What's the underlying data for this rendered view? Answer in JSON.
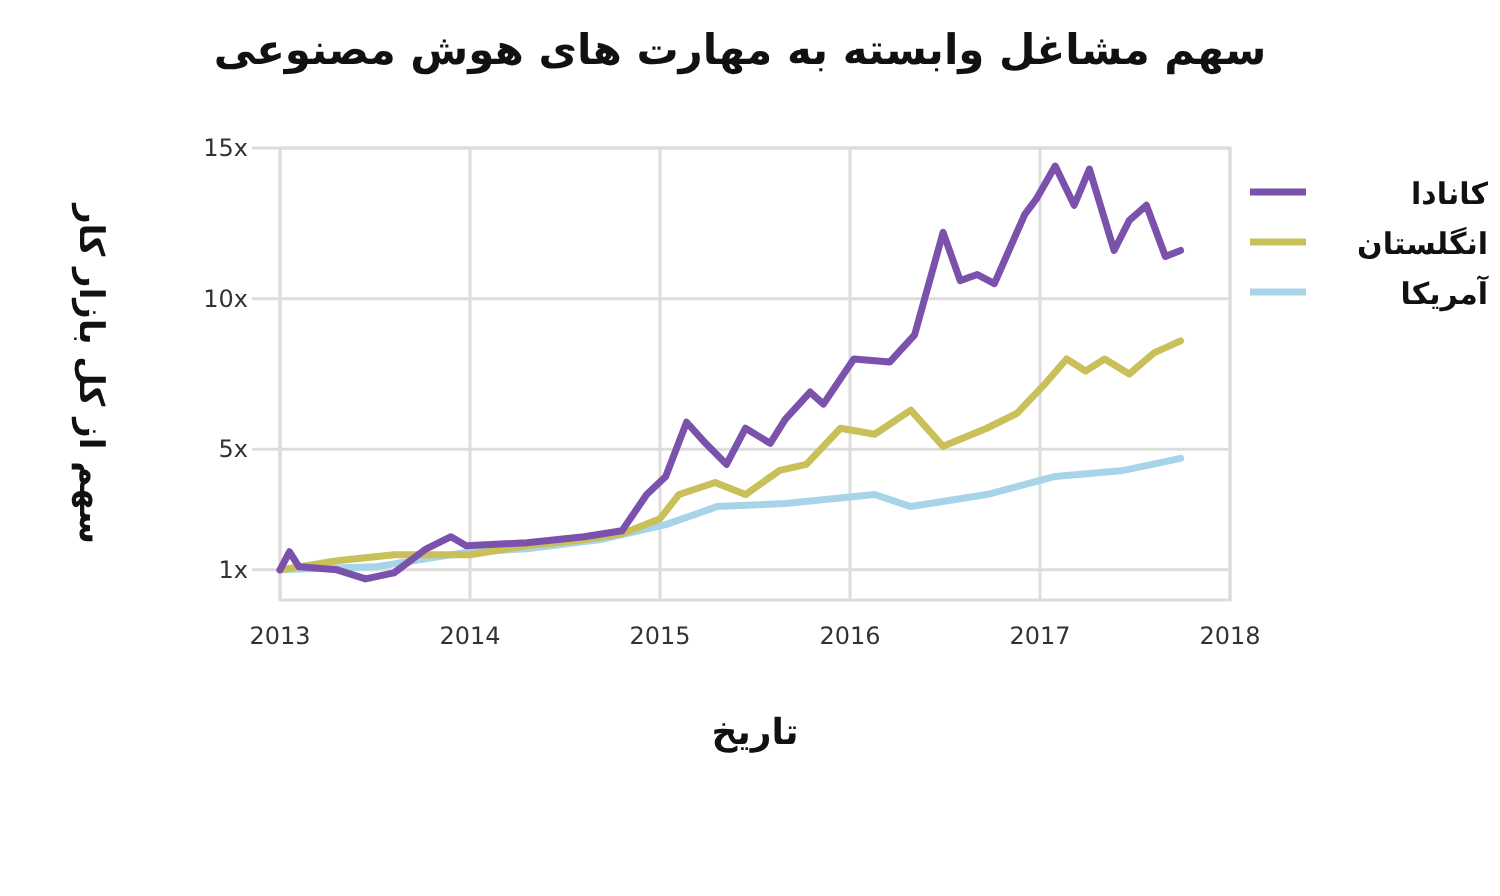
{
  "chart_data": {
    "type": "line",
    "title": "سهم مشاغل وابسته به مهارت های هوش مصنوعی",
    "xlabel": "تاریخ",
    "ylabel": "سهم از کل بازار کار",
    "xlim": [
      2013,
      2018
    ],
    "ylim": [
      0,
      15
    ],
    "xticks": [
      2013,
      2014,
      2015,
      2016,
      2017,
      2018
    ],
    "yticks": [
      {
        "value": 1,
        "label": "1x"
      },
      {
        "value": 5,
        "label": "5x"
      },
      {
        "value": 10,
        "label": "10x"
      },
      {
        "value": 15,
        "label": "15x"
      }
    ],
    "grid": true,
    "legend": "right",
    "series": [
      {
        "name": "کانادا",
        "color": "#7b52ab",
        "x": [
          2013.0,
          2013.05,
          2013.1,
          2013.3,
          2013.45,
          2013.6,
          2013.77,
          2013.9,
          2013.98,
          2014.3,
          2014.6,
          2014.8,
          2014.93,
          2015.03,
          2015.14,
          2015.24,
          2015.35,
          2015.45,
          2015.58,
          2015.66,
          2015.79,
          2015.86,
          2016.02,
          2016.21,
          2016.34,
          2016.49,
          2016.58,
          2016.67,
          2016.76,
          2016.92,
          2016.98,
          2017.08,
          2017.18,
          2017.26,
          2017.39,
          2017.47,
          2017.56,
          2017.66,
          2017.74
        ],
        "values": [
          1.0,
          1.6,
          1.1,
          1.0,
          0.7,
          0.9,
          1.7,
          2.1,
          1.8,
          1.9,
          2.1,
          2.3,
          3.5,
          4.1,
          5.9,
          5.2,
          4.5,
          5.7,
          5.2,
          6.0,
          6.9,
          6.5,
          8.0,
          7.9,
          8.8,
          12.2,
          10.6,
          10.8,
          10.5,
          12.8,
          13.3,
          14.4,
          13.1,
          14.3,
          11.6,
          12.6,
          13.1,
          11.4,
          11.6
        ]
      },
      {
        "name": "انگلستان",
        "color": "#c9c05a",
        "x": [
          2013.0,
          2013.3,
          2013.6,
          2014.0,
          2014.3,
          2014.6,
          2014.8,
          2015.0,
          2015.1,
          2015.29,
          2015.45,
          2015.63,
          2015.77,
          2015.95,
          2016.13,
          2016.32,
          2016.49,
          2016.72,
          2016.88,
          2017.03,
          2017.14,
          2017.24,
          2017.34,
          2017.47,
          2017.6,
          2017.74
        ],
        "values": [
          1.0,
          1.3,
          1.5,
          1.5,
          1.8,
          2.0,
          2.2,
          2.7,
          3.5,
          3.9,
          3.5,
          4.3,
          4.5,
          5.7,
          5.5,
          6.3,
          5.1,
          5.7,
          6.2,
          7.2,
          8.0,
          7.6,
          8.0,
          7.5,
          8.2,
          8.6
        ]
      },
      {
        "name": "آمریکا",
        "color": "#a8d4ea",
        "x": [
          2013.0,
          2013.5,
          2014.0,
          2014.3,
          2014.68,
          2015.03,
          2015.3,
          2015.66,
          2016.13,
          2016.32,
          2016.72,
          2017.08,
          2017.44,
          2017.74
        ],
        "values": [
          1.0,
          1.1,
          1.6,
          1.7,
          2.0,
          2.5,
          3.1,
          3.2,
          3.5,
          3.1,
          3.5,
          4.1,
          4.3,
          4.7
        ]
      }
    ]
  }
}
